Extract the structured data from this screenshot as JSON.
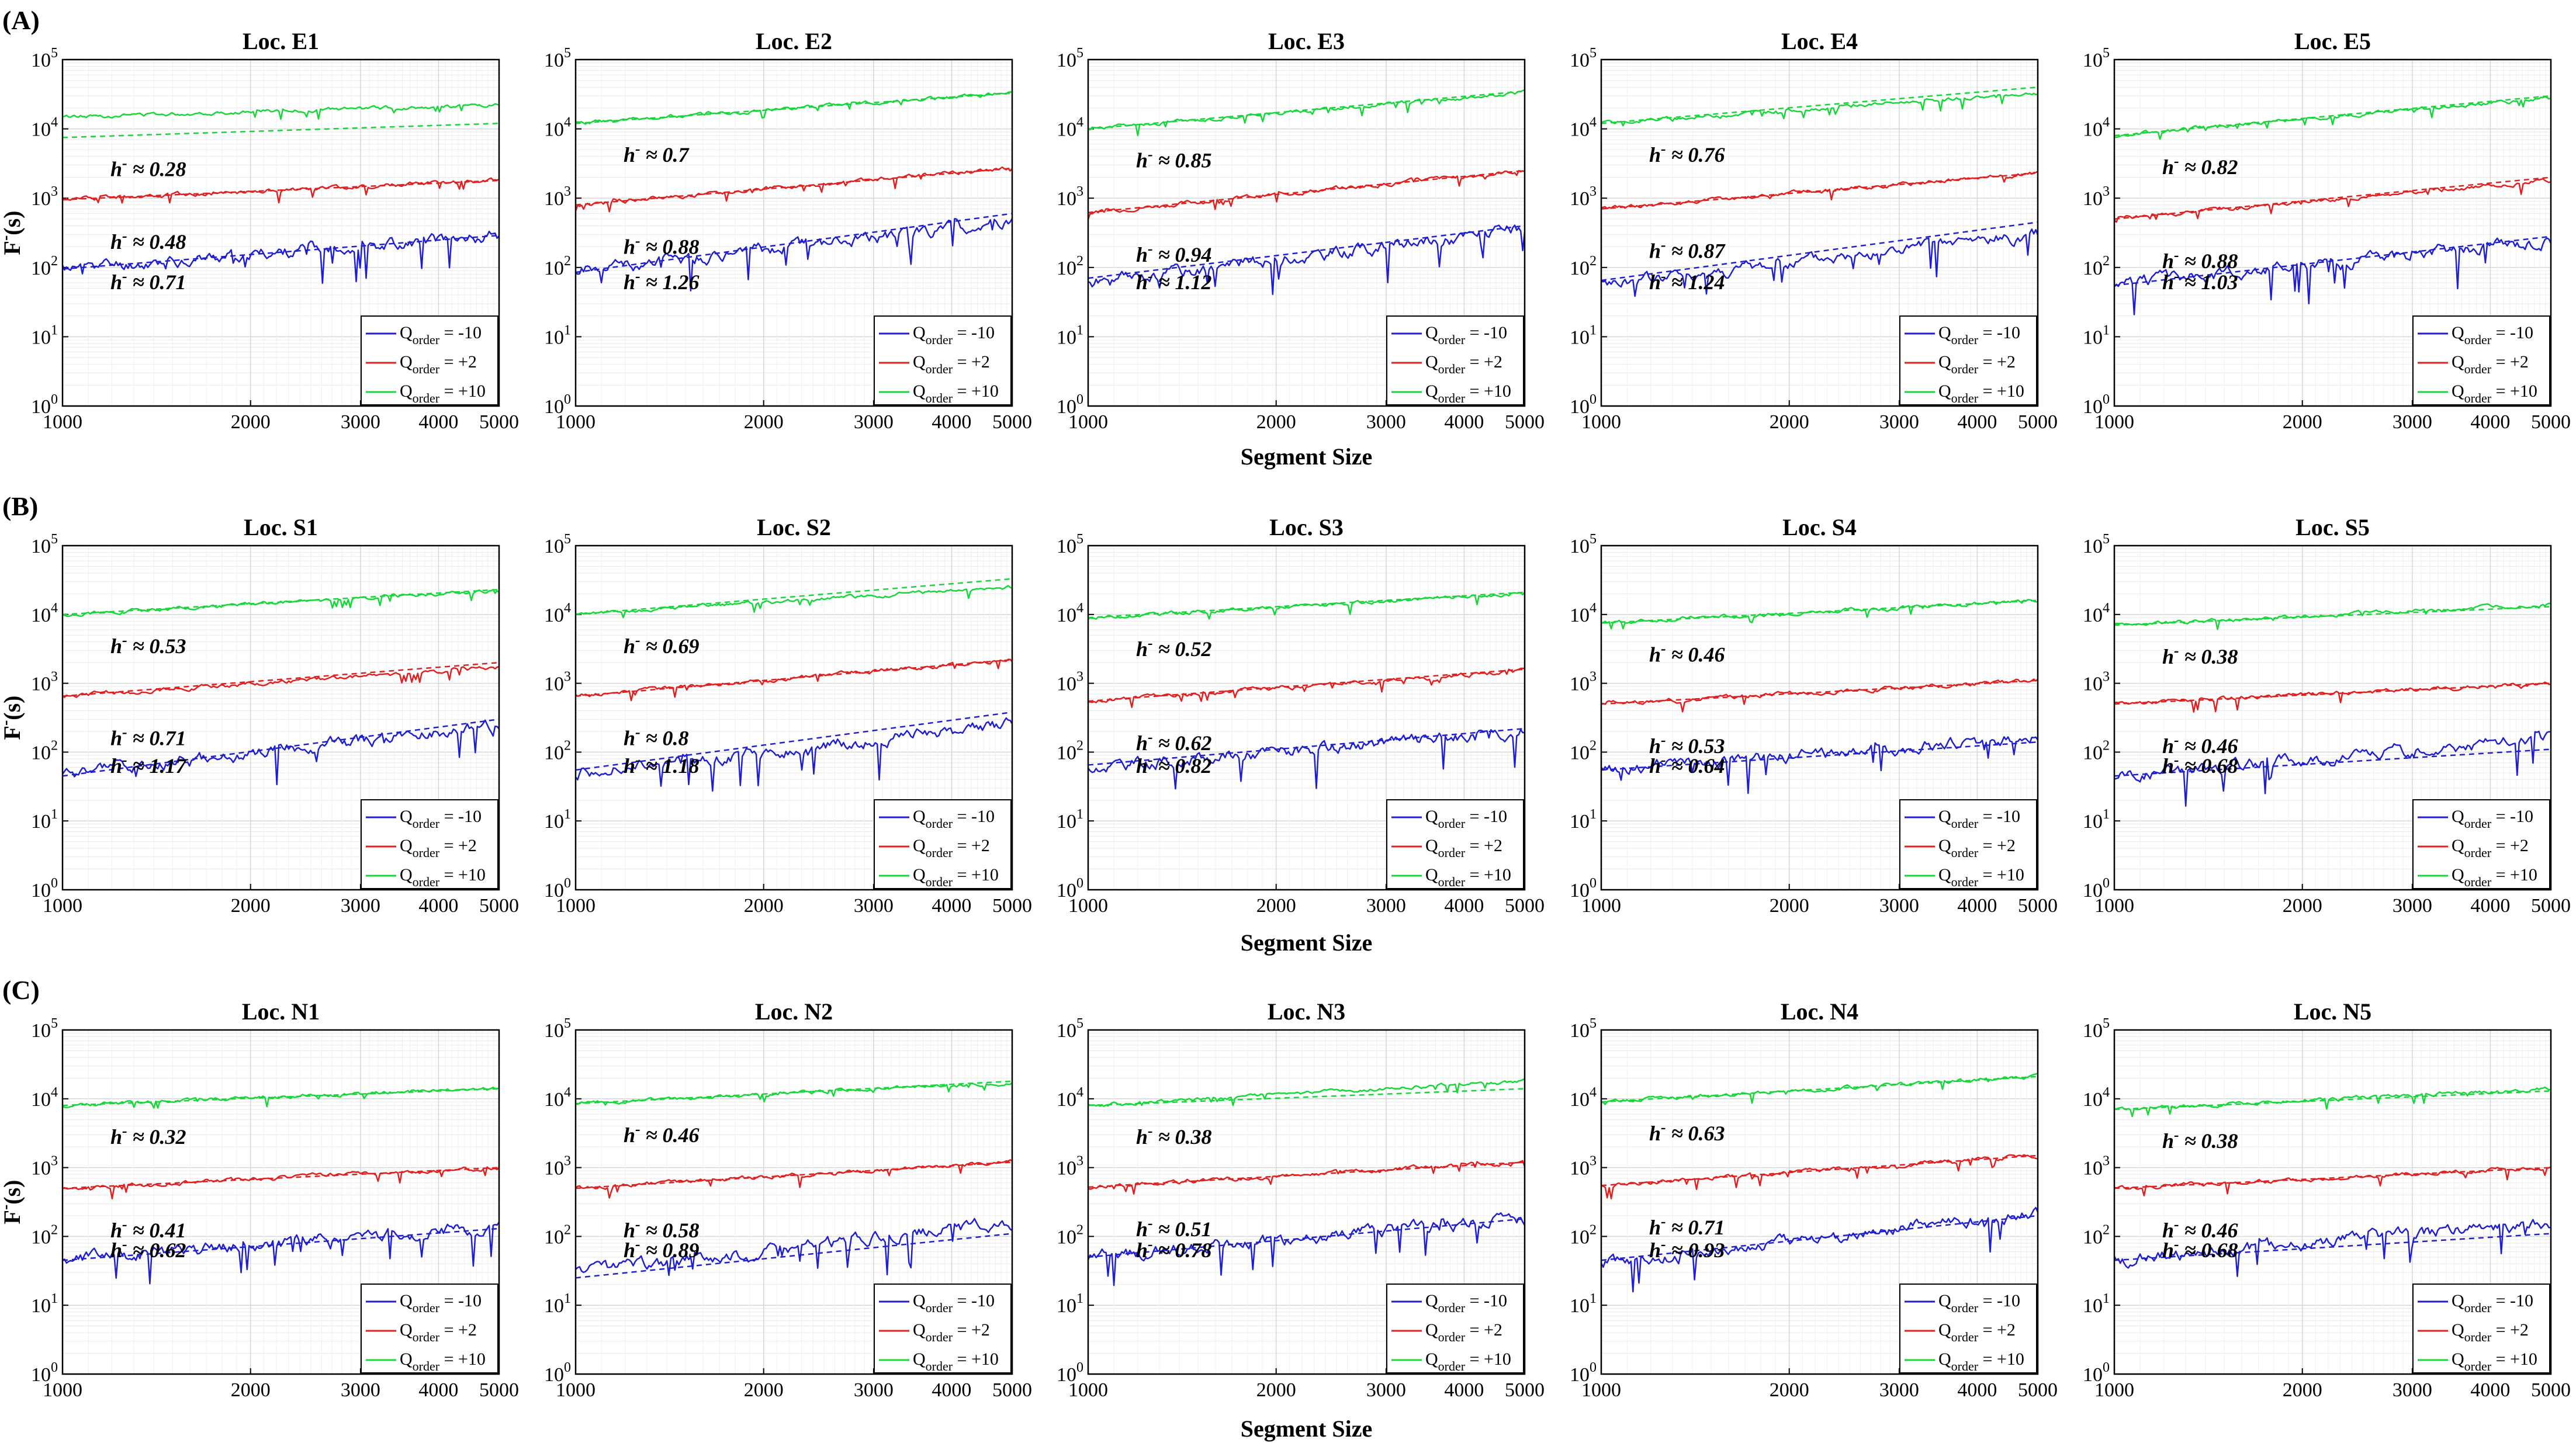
{
  "figure": {
    "xlabel": "Segment Size",
    "ylabel_base": "F",
    "ylabel_sup": "-",
    "ylabel_suffix": "(s)",
    "hurst_symbol": "h",
    "hurst_sup": "-",
    "approx_symbol": "≈",
    "legend_symbol": "Q",
    "legend_sub": "order",
    "colors": {
      "q_minus10": "#1f1fd0",
      "q_plus2": "#e02020",
      "q_plus10": "#17d63a",
      "grid": "#d6d6d6"
    }
  },
  "chart_data": [
    {
      "type": "line",
      "panel": "(A)",
      "row_xlabel": "Segment Size",
      "x_scale": "log",
      "y_scale": "log",
      "xlim": [
        1000,
        5000
      ],
      "ylim": [
        1,
        100000
      ],
      "x_ticks": [
        1000,
        2000,
        3000,
        4000,
        5000
      ],
      "x_tick_labels": [
        "1000",
        "2000",
        "3000",
        "4000",
        "5000"
      ],
      "y_ticks": [
        1,
        10,
        100,
        1000,
        10000,
        100000
      ],
      "y_tick_labels": [
        [
          "10",
          "0"
        ],
        [
          "10",
          "1"
        ],
        [
          "10",
          "2"
        ],
        [
          "10",
          "3"
        ],
        [
          "10",
          "4"
        ],
        [
          "10",
          "5"
        ]
      ],
      "legend": [
        {
          "series": "q_minus10",
          "label": "= -10"
        },
        {
          "series": "q_plus2",
          "label": "= +2"
        },
        {
          "series": "q_plus10",
          "label": "= +10"
        }
      ],
      "subplots": [
        {
          "title": "Loc. E1",
          "series": [
            {
              "name": "Q_order = -10",
              "key": "q_minus10",
              "f_start": 95,
              "f_end": 290,
              "h": "0.71",
              "fit_start": 95,
              "fit_end": 290,
              "seed": 11
            },
            {
              "name": "Q_order = +2",
              "key": "q_plus2",
              "f_start": 950,
              "f_end": 1800,
              "h": "0.48",
              "fit_start": 950,
              "fit_end": 1800,
              "seed": 12
            },
            {
              "name": "Q_order = +10",
              "key": "q_plus10",
              "f_start": 15000,
              "f_end": 22000,
              "h": "0.28",
              "fit_start": 7500,
              "fit_end": 12000,
              "seed": 13
            }
          ]
        },
        {
          "title": "Loc. E2",
          "series": [
            {
              "name": "Q_order = -10",
              "key": "q_minus10",
              "f_start": 90,
              "f_end": 450,
              "h": "1.26",
              "fit_start": 85,
              "fit_end": 600,
              "seed": 21
            },
            {
              "name": "Q_order = +2",
              "key": "q_plus2",
              "f_start": 800,
              "f_end": 2700,
              "h": "0.88",
              "fit_start": 800,
              "fit_end": 2700,
              "seed": 22
            },
            {
              "name": "Q_order = +10",
              "key": "q_plus10",
              "f_start": 12000,
              "f_end": 33000,
              "h": "0.7",
              "fit_start": 12000,
              "fit_end": 33000,
              "seed": 23
            }
          ]
        },
        {
          "title": "Loc. E3",
          "series": [
            {
              "name": "Q_order = -10",
              "key": "q_minus10",
              "f_start": 60,
              "f_end": 350,
              "h": "1.12",
              "fit_start": 70,
              "fit_end": 400,
              "seed": 31
            },
            {
              "name": "Q_order = +2",
              "key": "q_plus2",
              "f_start": 620,
              "f_end": 2500,
              "h": "0.94",
              "fit_start": 620,
              "fit_end": 2500,
              "seed": 32
            },
            {
              "name": "Q_order = +10",
              "key": "q_plus10",
              "f_start": 10000,
              "f_end": 33000,
              "h": "0.85",
              "fit_start": 10000,
              "fit_end": 35000,
              "seed": 33
            }
          ]
        },
        {
          "title": "Loc. E4",
          "series": [
            {
              "name": "Q_order = -10",
              "key": "q_minus10",
              "f_start": 55,
              "f_end": 300,
              "h": "1.24",
              "fit_start": 65,
              "fit_end": 450,
              "seed": 41
            },
            {
              "name": "Q_order = +2",
              "key": "q_plus2",
              "f_start": 700,
              "f_end": 2300,
              "h": "0.87",
              "fit_start": 700,
              "fit_end": 2300,
              "seed": 42
            },
            {
              "name": "Q_order = +10",
              "key": "q_plus10",
              "f_start": 12000,
              "f_end": 33000,
              "h": "0.76",
              "fit_start": 12000,
              "fit_end": 40000,
              "seed": 43
            }
          ]
        },
        {
          "title": "Loc. E5",
          "series": [
            {
              "name": "Q_order = -10",
              "key": "q_minus10",
              "f_start": 55,
              "f_end": 250,
              "h": "1.03",
              "fit_start": 55,
              "fit_end": 280,
              "seed": 51
            },
            {
              "name": "Q_order = +2",
              "key": "q_plus2",
              "f_start": 500,
              "f_end": 1800,
              "h": "0.88",
              "fit_start": 500,
              "fit_end": 2000,
              "seed": 52
            },
            {
              "name": "Q_order = +10",
              "key": "q_plus10",
              "f_start": 8000,
              "f_end": 28000,
              "h": "0.82",
              "fit_start": 8000,
              "fit_end": 30000,
              "seed": 53
            }
          ]
        }
      ]
    },
    {
      "type": "line",
      "panel": "(B)",
      "row_xlabel": "Segment Size",
      "x_scale": "log",
      "y_scale": "log",
      "xlim": [
        1000,
        5000
      ],
      "ylim": [
        1,
        100000
      ],
      "x_ticks": [
        1000,
        2000,
        3000,
        4000,
        5000
      ],
      "x_tick_labels": [
        "1000",
        "2000",
        "3000",
        "4000",
        "5000"
      ],
      "y_ticks": [
        1,
        10,
        100,
        1000,
        10000,
        100000
      ],
      "y_tick_labels": [
        [
          "10",
          "0"
        ],
        [
          "10",
          "1"
        ],
        [
          "10",
          "2"
        ],
        [
          "10",
          "3"
        ],
        [
          "10",
          "4"
        ],
        [
          "10",
          "5"
        ]
      ],
      "legend": [
        {
          "series": "q_minus10",
          "label": "= -10"
        },
        {
          "series": "q_plus2",
          "label": "= +2"
        },
        {
          "series": "q_plus10",
          "label": "= +10"
        }
      ],
      "subplots": [
        {
          "title": "Loc. S1",
          "series": [
            {
              "name": "Q_order = -10",
              "key": "q_minus10",
              "f_start": 45,
              "f_end": 250,
              "h": "1.17",
              "fit_start": 45,
              "fit_end": 300,
              "seed": 61
            },
            {
              "name": "Q_order = +2",
              "key": "q_plus2",
              "f_start": 650,
              "f_end": 1700,
              "h": "0.71",
              "fit_start": 650,
              "fit_end": 2000,
              "seed": 62
            },
            {
              "name": "Q_order = +10",
              "key": "q_plus10",
              "f_start": 10000,
              "f_end": 22000,
              "h": "0.53",
              "fit_start": 10000,
              "fit_end": 23000,
              "seed": 63
            }
          ]
        },
        {
          "title": "Loc. S2",
          "series": [
            {
              "name": "Q_order = -10",
              "key": "q_minus10",
              "f_start": 50,
              "f_end": 250,
              "h": "1.18",
              "fit_start": 55,
              "fit_end": 380,
              "seed": 71
            },
            {
              "name": "Q_order = +2",
              "key": "q_plus2",
              "f_start": 650,
              "f_end": 2200,
              "h": "0.8",
              "fit_start": 650,
              "fit_end": 2200,
              "seed": 72
            },
            {
              "name": "Q_order = +10",
              "key": "q_plus10",
              "f_start": 10000,
              "f_end": 25000,
              "h": "0.69",
              "fit_start": 10000,
              "fit_end": 33000,
              "seed": 73
            }
          ]
        },
        {
          "title": "Loc. S3",
          "series": [
            {
              "name": "Q_order = -10",
              "key": "q_minus10",
              "f_start": 60,
              "f_end": 200,
              "h": "0.82",
              "fit_start": 65,
              "fit_end": 220,
              "seed": 81
            },
            {
              "name": "Q_order = +2",
              "key": "q_plus2",
              "f_start": 550,
              "f_end": 1500,
              "h": "0.62",
              "fit_start": 550,
              "fit_end": 1600,
              "seed": 82
            },
            {
              "name": "Q_order = +10",
              "key": "q_plus10",
              "f_start": 9000,
              "f_end": 20000,
              "h": "0.52",
              "fit_start": 9000,
              "fit_end": 21000,
              "seed": 83
            }
          ]
        },
        {
          "title": "Loc. S4",
          "series": [
            {
              "name": "Q_order = -10",
              "key": "q_minus10",
              "f_start": 55,
              "f_end": 160,
              "h": "0.64",
              "fit_start": 55,
              "fit_end": 140,
              "seed": 91
            },
            {
              "name": "Q_order = +2",
              "key": "q_plus2",
              "f_start": 500,
              "f_end": 1100,
              "h": "0.53",
              "fit_start": 500,
              "fit_end": 1100,
              "seed": 92
            },
            {
              "name": "Q_order = +10",
              "key": "q_plus10",
              "f_start": 7500,
              "f_end": 16000,
              "h": "0.46",
              "fit_start": 7500,
              "fit_end": 16000,
              "seed": 93
            }
          ]
        },
        {
          "title": "Loc. S5",
          "series": [
            {
              "name": "Q_order = -10",
              "key": "q_minus10",
              "f_start": 45,
              "f_end": 160,
              "h": "0.68",
              "fit_start": 45,
              "fit_end": 110,
              "seed": 101
            },
            {
              "name": "Q_order = +2",
              "key": "q_plus2",
              "f_start": 500,
              "f_end": 1000,
              "h": "0.46",
              "fit_start": 500,
              "fit_end": 1000,
              "seed": 102
            },
            {
              "name": "Q_order = +10",
              "key": "q_plus10",
              "f_start": 7000,
              "f_end": 14000,
              "h": "0.38",
              "fit_start": 7000,
              "fit_end": 13000,
              "seed": 103
            }
          ]
        }
      ]
    },
    {
      "type": "line",
      "panel": "(C)",
      "row_xlabel": "Segment Size",
      "x_scale": "log",
      "y_scale": "log",
      "xlim": [
        1000,
        5000
      ],
      "ylim": [
        1,
        100000
      ],
      "x_ticks": [
        1000,
        2000,
        3000,
        4000,
        5000
      ],
      "x_tick_labels": [
        "1000",
        "2000",
        "3000",
        "4000",
        "5000"
      ],
      "y_ticks": [
        1,
        10,
        100,
        1000,
        10000,
        100000
      ],
      "y_tick_labels": [
        [
          "10",
          "0"
        ],
        [
          "10",
          "1"
        ],
        [
          "10",
          "2"
        ],
        [
          "10",
          "3"
        ],
        [
          "10",
          "4"
        ],
        [
          "10",
          "5"
        ]
      ],
      "legend": [
        {
          "series": "q_minus10",
          "label": "= -10"
        },
        {
          "series": "q_plus2",
          "label": "= +2"
        },
        {
          "series": "q_plus10",
          "label": "= +10"
        }
      ],
      "subplots": [
        {
          "title": "Loc. N1",
          "series": [
            {
              "name": "Q_order = -10",
              "key": "q_minus10",
              "f_start": 45,
              "f_end": 140,
              "h": "0.62",
              "fit_start": 45,
              "fit_end": 130,
              "seed": 111
            },
            {
              "name": "Q_order = +2",
              "key": "q_plus2",
              "f_start": 500,
              "f_end": 1000,
              "h": "0.41",
              "fit_start": 500,
              "fit_end": 1000,
              "seed": 112
            },
            {
              "name": "Q_order = +10",
              "key": "q_plus10",
              "f_start": 8000,
              "f_end": 14000,
              "h": "0.32",
              "fit_start": 8000,
              "fit_end": 14000,
              "seed": 113
            }
          ]
        },
        {
          "title": "Loc. N2",
          "series": [
            {
              "name": "Q_order = -10",
              "key": "q_minus10",
              "f_start": 30,
              "f_end": 160,
              "h": "0.89",
              "fit_start": 25,
              "fit_end": 110,
              "seed": 121
            },
            {
              "name": "Q_order = +2",
              "key": "q_plus2",
              "f_start": 500,
              "f_end": 1200,
              "h": "0.58",
              "fit_start": 500,
              "fit_end": 1200,
              "seed": 122
            },
            {
              "name": "Q_order = +10",
              "key": "q_plus10",
              "f_start": 8500,
              "f_end": 17000,
              "h": "0.46",
              "fit_start": 8500,
              "fit_end": 18000,
              "seed": 123
            }
          ]
        },
        {
          "title": "Loc. N3",
          "series": [
            {
              "name": "Q_order = -10",
              "key": "q_minus10",
              "f_start": 50,
              "f_end": 180,
              "h": "0.78",
              "fit_start": 50,
              "fit_end": 180,
              "seed": 131
            },
            {
              "name": "Q_order = +2",
              "key": "q_plus2",
              "f_start": 520,
              "f_end": 1200,
              "h": "0.51",
              "fit_start": 520,
              "fit_end": 1200,
              "seed": 132
            },
            {
              "name": "Q_order = +10",
              "key": "q_plus10",
              "f_start": 8000,
              "f_end": 18000,
              "h": "0.38",
              "fit_start": 8000,
              "fit_end": 14000,
              "seed": 133
            }
          ]
        },
        {
          "title": "Loc. N4",
          "series": [
            {
              "name": "Q_order = -10",
              "key": "q_minus10",
              "f_start": 40,
              "f_end": 220,
              "h": "0.93",
              "fit_start": 45,
              "fit_end": 200,
              "seed": 141
            },
            {
              "name": "Q_order = +2",
              "key": "q_plus2",
              "f_start": 550,
              "f_end": 1500,
              "h": "0.71",
              "fit_start": 550,
              "fit_end": 1500,
              "seed": 142
            },
            {
              "name": "Q_order = +10",
              "key": "q_plus10",
              "f_start": 9000,
              "f_end": 21000,
              "h": "0.63",
              "fit_start": 9000,
              "fit_end": 21000,
              "seed": 143
            }
          ]
        },
        {
          "title": "Loc. N5",
          "series": [
            {
              "name": "Q_order = -10",
              "key": "q_minus10",
              "f_start": 45,
              "f_end": 160,
              "h": "0.68",
              "fit_start": 45,
              "fit_end": 110,
              "seed": 151
            },
            {
              "name": "Q_order = +2",
              "key": "q_plus2",
              "f_start": 500,
              "f_end": 1000,
              "h": "0.46",
              "fit_start": 500,
              "fit_end": 1000,
              "seed": 152
            },
            {
              "name": "Q_order = +10",
              "key": "q_plus10",
              "f_start": 7000,
              "f_end": 14000,
              "h": "0.38",
              "fit_start": 7000,
              "fit_end": 13000,
              "seed": 153
            }
          ]
        }
      ]
    }
  ]
}
